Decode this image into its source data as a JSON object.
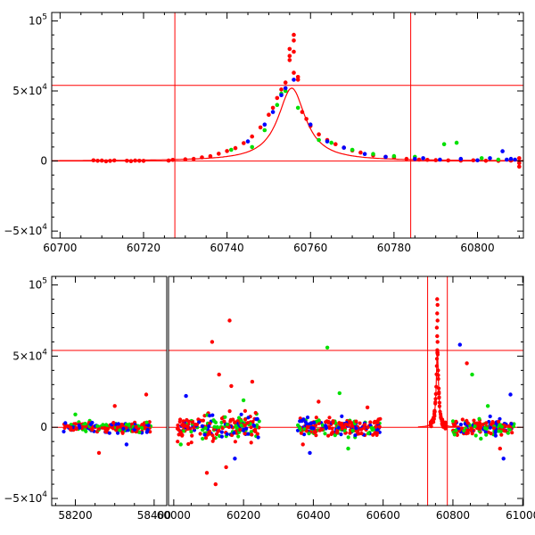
{
  "figure": {
    "colors": {
      "red": "#ff0000",
      "green": "#00e000",
      "blue": "#0000ff",
      "frame": "#000000"
    }
  },
  "chart_data": [
    {
      "type": "scatter",
      "name": "top-panel-zoom",
      "xlim": [
        60698,
        60811
      ],
      "ylim": [
        -55000,
        106000
      ],
      "xticks": [
        60700,
        60720,
        60740,
        60760,
        60780,
        60800
      ],
      "xtick_labels": [
        "60700",
        "60720",
        "60740",
        "60760",
        "60780",
        "60800"
      ],
      "yticks": [
        -50000,
        0,
        50000,
        100000
      ],
      "ytick_labels": [
        {
          "mant": "−5×10",
          "exp": "4"
        },
        {
          "mant": "0",
          "exp": ""
        },
        {
          "mant": "5×10",
          "exp": "4"
        },
        {
          "mant": "10",
          "exp": "5"
        }
      ],
      "hlines": [
        0,
        54000
      ],
      "vlines": [
        60727.5,
        60784
      ],
      "model": {
        "type": "lorentzian",
        "peak_x": 60755.5,
        "peak_y": 52000,
        "width": 4.0
      },
      "series": [
        {
          "name": "red",
          "color": "#ff0000",
          "points": [
            [
              60708,
              500
            ],
            [
              60709,
              200
            ],
            [
              60710,
              300
            ],
            [
              60711,
              -200
            ],
            [
              60712,
              100
            ],
            [
              60713,
              400
            ],
            [
              60716,
              200
            ],
            [
              60717,
              -100
            ],
            [
              60718,
              300
            ],
            [
              60719,
              200
            ],
            [
              60720,
              100
            ],
            [
              60726,
              300
            ],
            [
              60727,
              800
            ],
            [
              60730,
              1200
            ],
            [
              60732,
              1500
            ],
            [
              60734,
              2600
            ],
            [
              60736,
              3400
            ],
            [
              60738,
              5200
            ],
            [
              60740,
              7100
            ],
            [
              60742,
              9200
            ],
            [
              60744,
              12800
            ],
            [
              60746,
              17500
            ],
            [
              60748,
              24000
            ],
            [
              60750,
              33000
            ],
            [
              60751,
              38000
            ],
            [
              60752,
              45000
            ],
            [
              60753,
              51000
            ],
            [
              60754,
              56000
            ],
            [
              60755,
              80000
            ],
            [
              60755,
              75000
            ],
            [
              60755,
              72000
            ],
            [
              60756,
              90000
            ],
            [
              60756,
              86000
            ],
            [
              60756,
              78000
            ],
            [
              60756,
              63000
            ],
            [
              60757,
              60000
            ],
            [
              60757,
              58000
            ],
            [
              60758,
              35000
            ],
            [
              60759,
              30000
            ],
            [
              60760,
              25000
            ],
            [
              60762,
              19000
            ],
            [
              60764,
              15000
            ],
            [
              60766,
              12000
            ],
            [
              60768,
              9500
            ],
            [
              60770,
              7500
            ],
            [
              60772,
              6000
            ],
            [
              60775,
              4000
            ],
            [
              60778,
              3000
            ],
            [
              60780,
              2500
            ],
            [
              60783,
              1500
            ],
            [
              60786,
              1000
            ],
            [
              60788,
              800
            ],
            [
              60790,
              600
            ],
            [
              60793,
              400
            ],
            [
              60796,
              300
            ],
            [
              60799,
              500
            ],
            [
              60802,
              200
            ],
            [
              60805,
              100
            ],
            [
              60808,
              300
            ],
            [
              60810,
              -1500
            ],
            [
              60810,
              -4000
            ],
            [
              60810,
              2000
            ]
          ]
        },
        {
          "name": "green",
          "color": "#00e000",
          "points": [
            [
              60741,
              8000
            ],
            [
              60746,
              10000
            ],
            [
              60749,
              22000
            ],
            [
              60752,
              40000
            ],
            [
              60753,
              48000
            ],
            [
              60754,
              50000
            ],
            [
              60757,
              38000
            ],
            [
              60762,
              15000
            ],
            [
              60765,
              13000
            ],
            [
              60770,
              8000
            ],
            [
              60775,
              5000
            ],
            [
              60780,
              3500
            ],
            [
              60785,
              3000
            ],
            [
              60792,
              12000
            ],
            [
              60795,
              13000
            ],
            [
              60801,
              2000
            ],
            [
              60805,
              1000
            ]
          ]
        },
        {
          "name": "blue",
          "color": "#0000ff",
          "points": [
            [
              60745,
              14000
            ],
            [
              60749,
              26000
            ],
            [
              60751,
              35000
            ],
            [
              60753,
              47000
            ],
            [
              60754,
              52000
            ],
            [
              60756,
              58000
            ],
            [
              60760,
              26000
            ],
            [
              60764,
              14000
            ],
            [
              60768,
              9500
            ],
            [
              60773,
              5000
            ],
            [
              60778,
              3000
            ],
            [
              60785,
              1500
            ],
            [
              60787,
              2000
            ],
            [
              60791,
              1000
            ],
            [
              60796,
              1500
            ],
            [
              60800,
              500
            ],
            [
              60803,
              2000
            ],
            [
              60806,
              7000
            ],
            [
              60807,
              1000
            ],
            [
              60808,
              1500
            ],
            [
              60809,
              1000
            ]
          ]
        }
      ]
    },
    {
      "type": "scatter",
      "name": "bottom-panel-full",
      "ylim": [
        -55000,
        106000
      ],
      "segments": [
        {
          "xlim": [
            58140,
            58432
          ],
          "xticks": [
            58200,
            58400
          ],
          "xtick_labels": [
            "58200",
            "58400"
          ]
        },
        {
          "xlim": [
            59985,
            61002
          ],
          "xticks": [
            60000,
            60200,
            60400,
            60600,
            60800,
            61000
          ],
          "xtick_labels": [
            "60000",
            "60200",
            "60400",
            "60600",
            "60800",
            "61000"
          ]
        }
      ],
      "yticks": [
        -50000,
        0,
        50000,
        100000
      ],
      "ytick_labels": [
        {
          "mant": "−5×10",
          "exp": "4"
        },
        {
          "mant": "0",
          "exp": ""
        },
        {
          "mant": "5×10",
          "exp": "4"
        },
        {
          "mant": "10",
          "exp": "5"
        }
      ],
      "hlines": [
        0,
        54000
      ],
      "vlines": [
        60727.5,
        60784
      ],
      "clusters": [
        {
          "seg": 0,
          "x_range": [
            58170,
            58395
          ],
          "spread": 3500,
          "outliers": [
            {
              "x": 58380,
              "y": 23000,
              "s": "red"
            },
            {
              "x": 58300,
              "y": 15000,
              "s": "red"
            },
            {
              "x": 58260,
              "y": -18000,
              "s": "red"
            },
            {
              "x": 58330,
              "y": -12000,
              "s": "blue"
            },
            {
              "x": 58200,
              "y": 9000,
              "s": "green"
            }
          ]
        },
        {
          "seg": 1,
          "x_range": [
            60010,
            60245
          ],
          "spread": 9000,
          "outliers": [
            {
              "x": 60160,
              "y": 75000,
              "s": "red"
            },
            {
              "x": 60110,
              "y": 60000,
              "s": "red"
            },
            {
              "x": 60130,
              "y": 37000,
              "s": "red"
            },
            {
              "x": 60165,
              "y": 29000,
              "s": "red"
            },
            {
              "x": 60035,
              "y": 22000,
              "s": "blue"
            },
            {
              "x": 60225,
              "y": 32000,
              "s": "red"
            },
            {
              "x": 60120,
              "y": -40000,
              "s": "red"
            },
            {
              "x": 60095,
              "y": -32000,
              "s": "red"
            },
            {
              "x": 60150,
              "y": -28000,
              "s": "red"
            },
            {
              "x": 60175,
              "y": -22000,
              "s": "blue"
            },
            {
              "x": 60020,
              "y": -12000,
              "s": "green"
            },
            {
              "x": 60200,
              "y": 19000,
              "s": "green"
            }
          ]
        },
        {
          "seg": 1,
          "x_range": [
            60355,
            60595
          ],
          "spread": 6000,
          "outliers": [
            {
              "x": 60440,
              "y": 56000,
              "s": "green"
            },
            {
              "x": 60475,
              "y": 24000,
              "s": "green"
            },
            {
              "x": 60415,
              "y": 18000,
              "s": "red"
            },
            {
              "x": 60390,
              "y": -18000,
              "s": "blue"
            },
            {
              "x": 60500,
              "y": -15000,
              "s": "green"
            },
            {
              "x": 60555,
              "y": 14000,
              "s": "red"
            },
            {
              "x": 60370,
              "y": -12000,
              "s": "red"
            }
          ]
        },
        {
          "seg": 1,
          "x_range": [
            60800,
            60975
          ],
          "spread": 5000,
          "outliers": [
            {
              "x": 60820,
              "y": 58000,
              "s": "blue"
            },
            {
              "x": 60840,
              "y": 45000,
              "s": "red"
            },
            {
              "x": 60855,
              "y": 37000,
              "s": "green"
            },
            {
              "x": 60965,
              "y": 23000,
              "s": "blue"
            },
            {
              "x": 60900,
              "y": 15000,
              "s": "green"
            },
            {
              "x": 60945,
              "y": -22000,
              "s": "blue"
            },
            {
              "x": 60935,
              "y": -15000,
              "s": "red"
            },
            {
              "x": 60880,
              "y": -8000,
              "s": "green"
            }
          ]
        }
      ],
      "model": {
        "type": "lorentzian",
        "peak_x": 60755.5,
        "peak_y": 52000,
        "width": 4.0
      }
    }
  ]
}
